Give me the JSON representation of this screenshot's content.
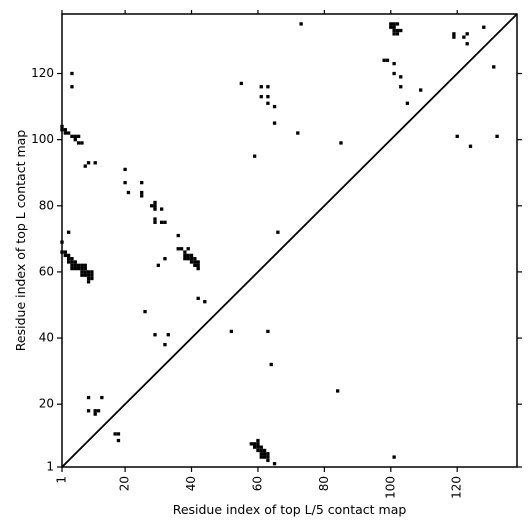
{
  "chart_data": {
    "type": "scatter",
    "xlabel": "Residue index of top L/5 contact map",
    "ylabel": "Residue index of top L contact map",
    "xlim": [
      1,
      138
    ],
    "ylim": [
      1,
      138
    ],
    "x_ticks": [
      1,
      20,
      40,
      60,
      80,
      100,
      120
    ],
    "y_ticks": [
      1,
      20,
      40,
      60,
      80,
      100,
      120
    ],
    "diagonal": true,
    "marker": "square",
    "color": "#000000",
    "upper_points": [
      [
        1,
        104
      ],
      [
        1,
        103
      ],
      [
        2,
        103
      ],
      [
        2,
        102
      ],
      [
        3,
        102
      ],
      [
        4,
        101
      ],
      [
        5,
        101
      ],
      [
        6,
        101
      ],
      [
        5,
        100
      ],
      [
        6,
        99
      ],
      [
        7,
        99
      ],
      [
        4,
        120
      ],
      [
        4,
        116
      ],
      [
        8,
        92
      ],
      [
        9,
        93
      ],
      [
        11,
        93
      ],
      [
        3,
        72
      ],
      [
        1,
        69
      ],
      [
        20,
        91
      ],
      [
        20,
        87
      ],
      [
        21,
        84
      ],
      [
        25,
        87
      ],
      [
        25,
        84
      ],
      [
        25,
        83
      ],
      [
        28,
        80
      ],
      [
        29,
        81
      ],
      [
        29,
        80
      ],
      [
        29,
        79
      ],
      [
        29,
        76
      ],
      [
        29,
        75
      ],
      [
        31,
        79
      ],
      [
        31,
        75
      ],
      [
        32,
        75
      ],
      [
        32,
        64
      ],
      [
        30,
        62
      ],
      [
        1,
        66
      ],
      [
        2,
        66
      ],
      [
        2,
        65
      ],
      [
        3,
        65
      ],
      [
        3,
        64
      ],
      [
        4,
        64
      ],
      [
        3,
        63
      ],
      [
        4,
        63
      ],
      [
        5,
        63
      ],
      [
        4,
        62
      ],
      [
        5,
        62
      ],
      [
        6,
        62
      ],
      [
        7,
        62
      ],
      [
        8,
        62
      ],
      [
        4,
        61
      ],
      [
        5,
        61
      ],
      [
        6,
        61
      ],
      [
        7,
        61
      ],
      [
        8,
        61
      ],
      [
        7,
        60
      ],
      [
        8,
        60
      ],
      [
        9,
        60
      ],
      [
        10,
        60
      ],
      [
        7,
        59
      ],
      [
        8,
        59
      ],
      [
        9,
        59
      ],
      [
        10,
        59
      ],
      [
        9,
        58
      ],
      [
        10,
        58
      ],
      [
        9,
        57
      ],
      [
        36,
        71
      ],
      [
        36,
        67
      ],
      [
        37,
        67
      ],
      [
        38,
        66
      ],
      [
        39,
        67
      ],
      [
        38,
        65
      ],
      [
        39,
        65
      ],
      [
        40,
        65
      ],
      [
        38,
        64
      ],
      [
        39,
        64
      ],
      [
        40,
        64
      ],
      [
        41,
        64
      ],
      [
        40,
        63
      ],
      [
        41,
        63
      ],
      [
        42,
        63
      ],
      [
        41,
        62
      ],
      [
        42,
        62
      ],
      [
        42,
        61
      ],
      [
        26,
        48
      ],
      [
        42,
        52
      ],
      [
        44,
        51
      ],
      [
        29,
        41
      ],
      [
        33,
        41
      ],
      [
        32,
        38
      ],
      [
        52,
        42
      ],
      [
        55,
        117
      ],
      [
        61,
        116
      ],
      [
        63,
        116
      ],
      [
        61,
        113
      ],
      [
        63,
        113
      ],
      [
        63,
        111
      ],
      [
        65,
        110
      ],
      [
        65,
        105
      ],
      [
        59,
        95
      ],
      [
        66,
        72
      ],
      [
        72,
        102
      ],
      [
        73,
        135
      ],
      [
        85,
        99
      ],
      [
        63,
        42
      ],
      [
        64,
        32
      ],
      [
        84,
        24
      ],
      [
        98,
        124
      ],
      [
        99,
        124
      ],
      [
        100,
        135
      ],
      [
        101,
        135
      ],
      [
        102,
        135
      ],
      [
        100,
        134
      ],
      [
        101,
        134
      ],
      [
        101,
        133
      ],
      [
        102,
        133
      ],
      [
        103,
        133
      ],
      [
        101,
        132
      ],
      [
        102,
        132
      ],
      [
        101,
        123
      ],
      [
        101,
        120
      ],
      [
        103,
        119
      ],
      [
        103,
        116
      ],
      [
        105,
        111
      ],
      [
        109,
        115
      ],
      [
        119,
        132
      ],
      [
        119,
        131
      ],
      [
        122,
        131
      ],
      [
        123,
        132
      ],
      [
        123,
        129
      ],
      [
        128,
        134
      ],
      [
        131,
        122
      ],
      [
        132,
        101
      ],
      [
        120,
        101
      ],
      [
        124,
        98
      ]
    ],
    "lower_points": [
      [
        9,
        22
      ],
      [
        13,
        22
      ],
      [
        9,
        18
      ],
      [
        11,
        18
      ],
      [
        12,
        18
      ],
      [
        11,
        17
      ],
      [
        17,
        11
      ],
      [
        18,
        11
      ],
      [
        18,
        9
      ],
      [
        58,
        8
      ],
      [
        59,
        8
      ],
      [
        60,
        8
      ],
      [
        60,
        9
      ],
      [
        59,
        7
      ],
      [
        60,
        7
      ],
      [
        61,
        7
      ],
      [
        60,
        6
      ],
      [
        61,
        6
      ],
      [
        62,
        6
      ],
      [
        61,
        5
      ],
      [
        62,
        5
      ],
      [
        63,
        5
      ],
      [
        61,
        4
      ],
      [
        62,
        4
      ],
      [
        63,
        4
      ],
      [
        63,
        3
      ],
      [
        65,
        2
      ],
      [
        101,
        4
      ]
    ]
  }
}
